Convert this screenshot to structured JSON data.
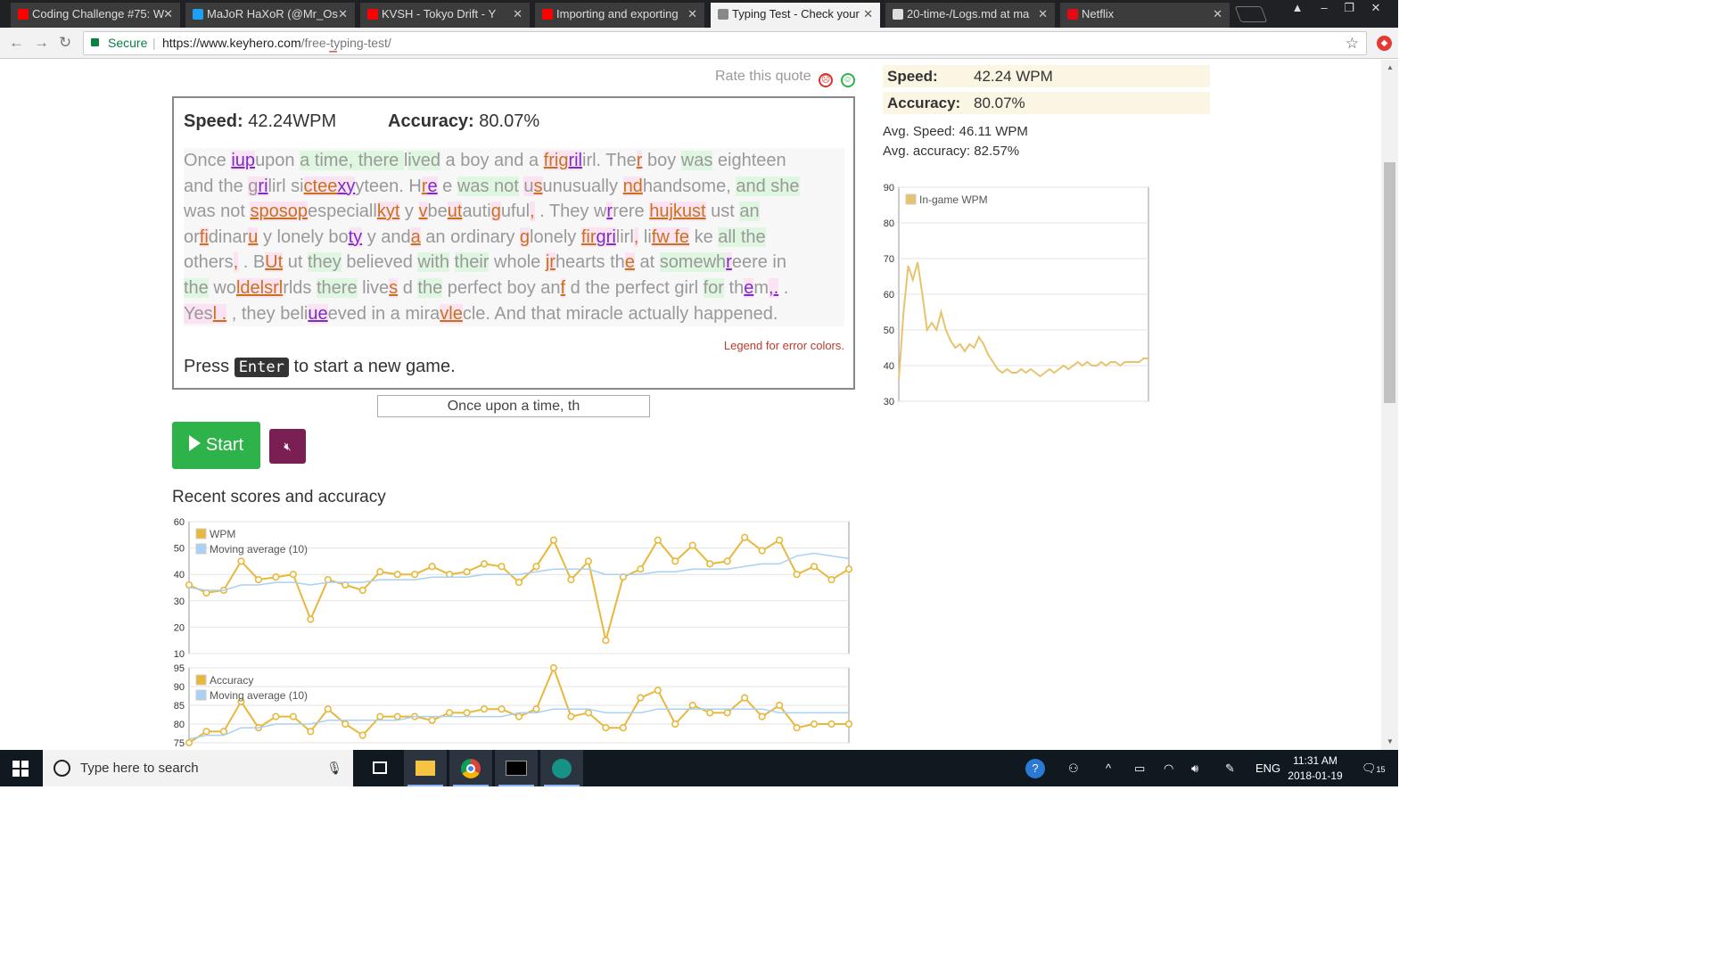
{
  "browser": {
    "tabs": [
      {
        "label": "Coding Challenge #75: W",
        "icon": "youtube-icon",
        "color": "#ff0000",
        "active": false
      },
      {
        "label": "MaJoR HaXoR (@Mr_Os",
        "icon": "twitter-icon",
        "color": "#1da1f2",
        "active": false
      },
      {
        "label": "KVSH - Tokyo Drift - Y",
        "icon": "youtube-icon",
        "color": "#ff0000",
        "active": false
      },
      {
        "label": "Importing and exporting",
        "icon": "youtube-icon",
        "color": "#ff0000",
        "active": false
      },
      {
        "label": "Typing Test - Check your",
        "icon": "keyhero-icon",
        "color": "#888888",
        "active": true
      },
      {
        "label": "20-time-/Logs.md at ma",
        "icon": "github-icon",
        "color": "#dddddd",
        "active": false
      },
      {
        "label": "Netflix",
        "icon": "netflix-icon",
        "color": "#e50914",
        "active": false
      }
    ],
    "secure_label": "Secure",
    "url_host": "https://www.keyhero.com",
    "url_path": "/free-typing-test/"
  },
  "page": {
    "rate_label": "Rate this quote",
    "game": {
      "speed_label": "Speed:",
      "speed_value": "42.24WPM",
      "accuracy_label": "Accuracy:",
      "accuracy_value": "80.07%",
      "legend_link": "Legend for error colors.",
      "press_before": "Press",
      "press_key": "Enter",
      "press_after": "to start a new game."
    },
    "input_value": "Once upon a time, th",
    "start_label": "Start",
    "recent_title": "Recent scores and accuracy",
    "side": {
      "speed_label": "Speed:",
      "speed_value": "42.24 WPM",
      "accuracy_label": "Accuracy:",
      "accuracy_value": "80.07%",
      "avg_speed": "Avg. Speed: 46.11 WPM",
      "avg_accuracy": "Avg. accuracy: 82.57%"
    }
  },
  "taskbar": {
    "search_placeholder": "Type here to search",
    "lang": "ENG",
    "time": "11:31 AM",
    "date": "2018-01-19",
    "notifications": "15"
  },
  "chart_data": [
    {
      "type": "line",
      "legend": [
        "In-game WPM"
      ],
      "ylim": [
        30,
        90
      ],
      "yticks": [
        30,
        40,
        50,
        60,
        70,
        80,
        90
      ],
      "series": [
        {
          "name": "In-game WPM",
          "color": "#e8c36d",
          "values": [
            36,
            55,
            68,
            64,
            69,
            60,
            50,
            52,
            50,
            55,
            50,
            47,
            45,
            46,
            44,
            46,
            45,
            48,
            46,
            43,
            41,
            39,
            38,
            39,
            38,
            38,
            39,
            38,
            39,
            38,
            37,
            38,
            39,
            38,
            39,
            40,
            39,
            40,
            41,
            40,
            41,
            40,
            40,
            41,
            40,
            41,
            41,
            40,
            41,
            41,
            41,
            41,
            42,
            42
          ]
        }
      ]
    },
    {
      "type": "line",
      "legend": [
        "WPM",
        "Moving average (10)"
      ],
      "ylim": [
        10,
        60
      ],
      "yticks": [
        10,
        20,
        30,
        40,
        50,
        60
      ],
      "series": [
        {
          "name": "WPM",
          "color": "#e8b83c",
          "values": [
            36,
            33,
            34,
            45,
            38,
            39,
            40,
            23,
            38,
            36,
            34,
            41,
            40,
            40,
            43,
            40,
            41,
            44,
            43,
            37,
            43,
            53,
            38,
            45,
            15,
            39,
            42,
            53,
            45,
            51,
            44,
            45,
            54,
            49,
            53,
            40,
            43,
            38,
            42
          ]
        },
        {
          "name": "Moving average (10)",
          "color": "#a9d0f5",
          "values": [
            35,
            34,
            34,
            36,
            36,
            37,
            37,
            36,
            37,
            37,
            37,
            38,
            38,
            38,
            39,
            39,
            39,
            40,
            40,
            40,
            41,
            42,
            42,
            42,
            40,
            40,
            40,
            41,
            41,
            42,
            42,
            42,
            43,
            44,
            44,
            47,
            48,
            47,
            46
          ]
        }
      ]
    },
    {
      "type": "line",
      "legend": [
        "Accuracy",
        "Moving average (10)"
      ],
      "ylim": [
        75,
        95
      ],
      "yticks": [
        75,
        80,
        85,
        90,
        95
      ],
      "series": [
        {
          "name": "Accuracy",
          "color": "#e8b83c",
          "values": [
            75,
            78,
            78,
            86,
            79,
            82,
            82,
            78,
            84,
            80,
            77,
            82,
            82,
            82,
            81,
            83,
            83,
            84,
            84,
            82,
            84,
            95,
            82,
            83,
            79,
            79,
            87,
            89,
            80,
            85,
            83,
            83,
            87,
            82,
            85,
            79,
            80,
            80,
            80
          ]
        },
        {
          "name": "Moving average (10)",
          "color": "#a9d0f5",
          "values": [
            76,
            77,
            77,
            79,
            79,
            80,
            80,
            80,
            81,
            81,
            81,
            81,
            81,
            82,
            82,
            82,
            82,
            82,
            82,
            83,
            83,
            84,
            84,
            84,
            83,
            83,
            83,
            84,
            84,
            84,
            84,
            84,
            84,
            84,
            83,
            83,
            83,
            83,
            83
          ]
        }
      ]
    }
  ]
}
